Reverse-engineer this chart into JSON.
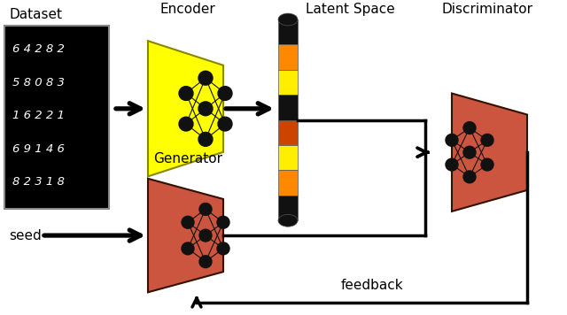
{
  "bg_color": "#ffffff",
  "dataset_label": "Dataset",
  "encoder_label": "Encoder",
  "encoder_color": "#ffff00",
  "encoder_edge_color": "#888800",
  "latent_label": "Latent Space",
  "latent_colors": [
    "#111111",
    "#ff8800",
    "#ffee00",
    "#111111",
    "#cc4400",
    "#ffee00",
    "#ff8800",
    "#111111"
  ],
  "discriminator_label": "Discriminator",
  "discriminator_color": "#cc5540",
  "discriminator_edge_color": "#331100",
  "generator_label": "Generator",
  "generator_color": "#cc5540",
  "generator_edge_color": "#331100",
  "seed_label": "seed",
  "feedback_label": "feedback",
  "node_color": "#111111",
  "line_color": "#111111",
  "arrow_color": "#111111",
  "lw_arrow": 2.5,
  "lw_block": 1.5
}
